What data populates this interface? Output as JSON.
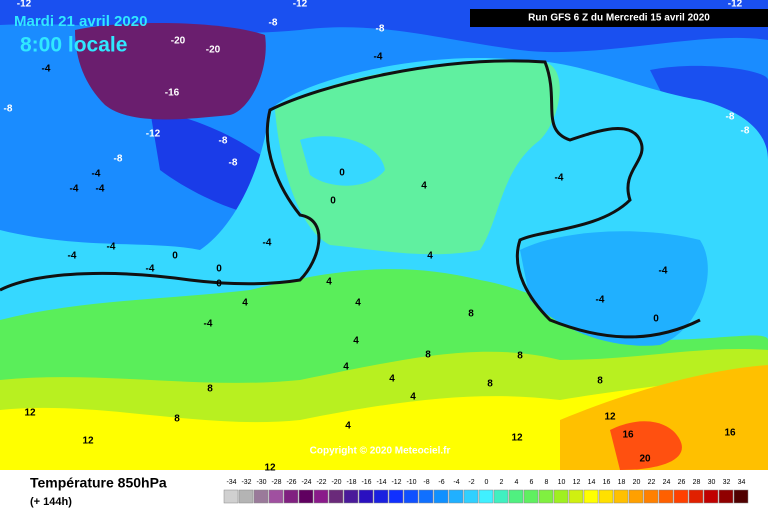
{
  "header": {
    "date": "Mardi 21 avril 2020",
    "time": "8:00 locale",
    "run": "Run GFS 6 Z du Mercredi 15 avril 2020",
    "copyright": "Copyright © 2020 Meteociel.fr"
  },
  "legend": {
    "title": "Température 850hPa",
    "subtitle": "(+ 144h)",
    "ticks": [
      -34,
      -32,
      -30,
      -28,
      -26,
      -24,
      -22,
      -20,
      -18,
      -16,
      -14,
      -12,
      -10,
      -8,
      -6,
      -4,
      -2,
      0,
      2,
      4,
      6,
      8,
      10,
      12,
      14,
      16,
      18,
      20,
      22,
      24,
      26,
      28,
      30,
      32,
      34
    ],
    "colors": [
      "#d0d0d0",
      "#b4b4b4",
      "#9a7a9a",
      "#a050a0",
      "#802080",
      "#600060",
      "#8a1a8a",
      "#6a2a7a",
      "#4a1a9a",
      "#2a10c0",
      "#1a20e0",
      "#1030ff",
      "#1050ff",
      "#1070ff",
      "#1090ff",
      "#20b0ff",
      "#30d0ff",
      "#40f0ff",
      "#40f0c0",
      "#50f080",
      "#60f060",
      "#80f040",
      "#a0f020",
      "#d0f010",
      "#ffff00",
      "#ffe000",
      "#ffc000",
      "#ffa000",
      "#ff8000",
      "#ff6000",
      "#ff4000",
      "#e02000",
      "#c00000",
      "#900000",
      "#500000"
    ]
  },
  "map_labels": [
    -12,
    -12,
    -8,
    -8,
    -20,
    -20,
    -4,
    -16,
    -12,
    -8,
    -8,
    -8,
    -8,
    -4,
    -4,
    -4,
    -4,
    -4,
    -4,
    -4,
    -4,
    0,
    0,
    0,
    0,
    0,
    4,
    4,
    4,
    4,
    -4,
    4,
    4,
    4,
    4,
    4,
    4,
    -4,
    -8,
    -8,
    -12,
    -4,
    -4,
    0,
    8,
    8,
    8,
    8,
    8,
    12,
    12,
    12,
    12,
    12,
    16,
    16,
    20,
    8,
    8
  ]
}
